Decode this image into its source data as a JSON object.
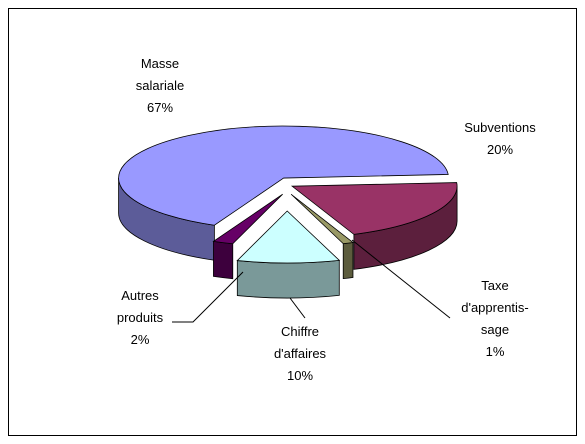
{
  "chart_data": {
    "type": "pie3d",
    "categories": [
      "Subventions",
      "Taxe\nd'apprentis-\nsage",
      "Chiffre\nd'affaires",
      "Autres\nproduits",
      "Masse\nsalariale"
    ],
    "values": [
      20,
      1,
      10,
      2,
      67
    ],
    "value_labels": [
      "20%",
      "1%",
      "10%",
      "2%",
      "67%"
    ],
    "colors": [
      "#993366",
      "#999966",
      "#ccffff",
      "#660066",
      "#9999ff"
    ]
  }
}
